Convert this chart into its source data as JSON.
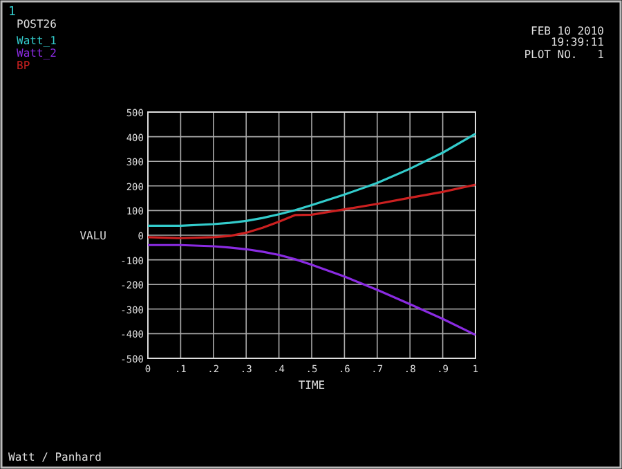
{
  "chart_data": {
    "type": "line",
    "xlabel": "TIME",
    "ylabel": "VALU",
    "annotations": [
      "1",
      "POST26",
      "FEB 10 2010",
      "19:39:11",
      "PLOT NO.   1",
      "Watt / Panhard"
    ],
    "x": [
      0,
      0.1,
      0.2,
      0.25,
      0.3,
      0.35,
      0.4,
      0.45,
      0.5,
      0.6,
      0.7,
      0.8,
      0.9,
      1
    ],
    "series": [
      {
        "name": "Watt_1",
        "color": "#33cccc",
        "values": [
          38,
          38,
          45,
          50,
          58,
          70,
          85,
          102,
          122,
          165,
          212,
          270,
          335,
          412
        ]
      },
      {
        "name": "Watt_2",
        "color": "#8a2be2",
        "values": [
          -40,
          -40,
          -45,
          -50,
          -57,
          -67,
          -80,
          -98,
          -120,
          -168,
          -222,
          -280,
          -340,
          -405
        ]
      },
      {
        "name": "BP",
        "color": "#cc2020",
        "values": [
          -8,
          -12,
          -8,
          -3,
          10,
          30,
          55,
          82,
          83,
          105,
          127,
          152,
          176,
          205
        ]
      }
    ],
    "xlim": [
      0,
      1
    ],
    "xticks": [
      0,
      {
        "value": 0.1,
        "label": ".1"
      },
      {
        "value": 0.2,
        "label": ".2"
      },
      {
        "value": 0.3,
        "label": ".3"
      },
      {
        "value": 0.4,
        "label": ".4"
      },
      {
        "value": 0.5,
        "label": ".5"
      },
      {
        "value": 0.6,
        "label": ".6"
      },
      {
        "value": 0.7,
        "label": ".7"
      },
      {
        "value": 0.8,
        "label": ".8"
      },
      {
        "value": 0.9,
        "label": ".9"
      },
      1
    ],
    "ylim": [
      -500,
      500
    ],
    "yticks": [
      -500,
      -400,
      -300,
      -200,
      -100,
      0,
      100,
      200,
      300,
      400,
      500
    ],
    "grid": true,
    "legend": "top left",
    "marker": "none",
    "line_style": "solid"
  }
}
